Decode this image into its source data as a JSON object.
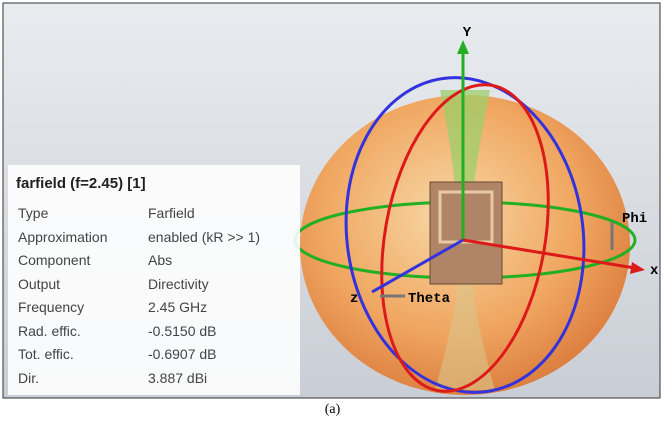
{
  "panel": {
    "title": "farfield (f=2.45) [1]",
    "rows": [
      [
        "Type",
        "Farfield"
      ],
      [
        "Approximation",
        "enabled (kR >> 1)"
      ],
      [
        "Component",
        "Abs"
      ],
      [
        "Output",
        "Directivity"
      ],
      [
        "Frequency",
        "2.45 GHz"
      ],
      [
        "Rad. effic.",
        "-0.5150 dB"
      ],
      [
        "Tot. effic.",
        "-0.6907 dB"
      ],
      [
        "Dir.",
        "3.887 dBi"
      ]
    ]
  },
  "axes": {
    "y": "Y",
    "x": "x",
    "z": "z",
    "theta": "Theta",
    "phi": "Phi"
  },
  "caption": "(a)"
}
